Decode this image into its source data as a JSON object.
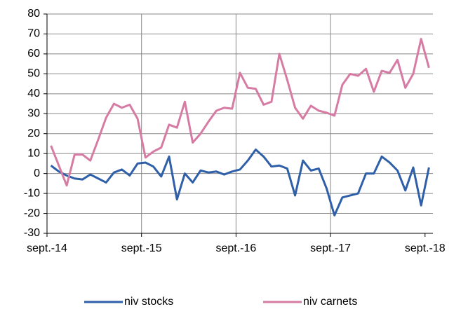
{
  "chart_data": {
    "type": "line",
    "x": [
      0.5,
      1.5,
      2.5,
      3.5,
      4.5,
      5.5,
      6.5,
      7.5,
      8.5,
      9.5,
      10.5,
      11.5,
      12.5,
      13.5,
      14.5,
      15.5,
      16.5,
      17.5,
      18.5,
      19.5,
      20.5,
      21.5,
      22.5,
      23.5,
      24.5,
      25.5,
      26.5,
      27.5,
      28.5,
      29.5,
      30.5,
      31.5,
      32.5,
      33.5,
      34.5,
      35.5,
      36.5,
      37.5,
      38.5,
      39.5,
      40.5,
      41.5,
      42.5,
      43.5,
      44.5,
      45.5,
      46.5,
      47.5,
      48.5
    ],
    "series": [
      {
        "name": "niv stocks",
        "color": "#2e5fa8",
        "values": [
          4,
          1,
          -1,
          -2.5,
          -3,
          -0.5,
          -2.5,
          -4.5,
          0.5,
          2,
          -1,
          5,
          5.5,
          3.5,
          -1.5,
          8.5,
          -13,
          0,
          -4.5,
          1.5,
          0.5,
          1,
          -0.5,
          1,
          2,
          6.5,
          12,
          8.5,
          3.5,
          4,
          2.5,
          -11,
          6.5,
          1.5,
          2.5,
          -7.5,
          -21,
          -12,
          -11,
          -10,
          0,
          0,
          8.5,
          5.5,
          1.5,
          -8.5,
          3,
          -16,
          3
        ]
      },
      {
        "name": "niv carnets",
        "color": "#d67ba3",
        "values": [
          14,
          4,
          -6,
          9.5,
          9.5,
          6.5,
          17,
          28,
          35,
          33,
          34.5,
          27.5,
          8,
          11,
          13,
          24.5,
          23,
          36,
          15.5,
          20,
          26,
          31.5,
          33,
          32.5,
          50.5,
          43,
          42.5,
          34.5,
          36,
          60,
          47,
          33,
          27.5,
          34,
          31.5,
          30.5,
          29,
          44.5,
          50,
          49,
          52.5,
          41,
          51.5,
          50.5,
          57,
          43,
          50,
          67.5,
          53
        ]
      }
    ],
    "xlim": [
      0,
      49
    ],
    "xticks": [
      {
        "value": 0,
        "label": "sept.-14"
      },
      {
        "value": 12,
        "label": "sept.-15"
      },
      {
        "value": 24,
        "label": "sept.-16"
      },
      {
        "value": 36,
        "label": "sept.-17"
      },
      {
        "value": 48,
        "label": "sept.-18"
      }
    ],
    "ylim": [
      -30,
      80
    ],
    "yticks": [
      -30,
      -20,
      -10,
      0,
      10,
      20,
      30,
      40,
      50,
      60,
      70,
      80
    ],
    "grid": true,
    "legend": "bottom"
  }
}
